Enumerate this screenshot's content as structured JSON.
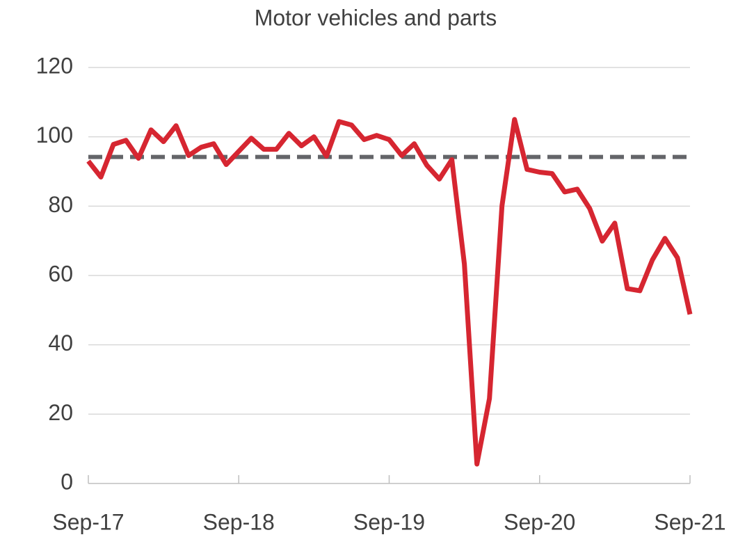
{
  "chart_data": {
    "type": "line",
    "title": "Motor vehicles and parts",
    "categories": [
      "Sep-17",
      null,
      null,
      null,
      null,
      null,
      null,
      null,
      null,
      null,
      null,
      null,
      "Sep-18",
      null,
      null,
      null,
      null,
      null,
      null,
      null,
      null,
      null,
      null,
      null,
      "Sep-19",
      null,
      null,
      null,
      null,
      null,
      null,
      null,
      null,
      null,
      null,
      null,
      "Sep-20",
      null,
      null,
      null,
      null,
      null,
      null,
      null,
      null,
      null,
      null,
      null,
      "Sep-21"
    ],
    "series": [
      {
        "color": "#d62631",
        "values": [
          93,
          88.4,
          97.8,
          99,
          93.8,
          102,
          98.6,
          103.2,
          94.6,
          97,
          98,
          92,
          95.8,
          99.6,
          96.4,
          96.4,
          101,
          97.4,
          100,
          94.4,
          104.4,
          103.4,
          99.2,
          100.4,
          99.2,
          94.6,
          98,
          91.8,
          87.8,
          93.4,
          63.3,
          5.6,
          24.5,
          80.1,
          105,
          90.6,
          89.8,
          89.4,
          84.1,
          84.9,
          79.3,
          69.9,
          75.1,
          56.2,
          55.6,
          64.5,
          70.7,
          65.1,
          48.8
        ]
      }
    ],
    "reference_line": {
      "value": 94.2,
      "color": "#646569",
      "style": "dashed"
    },
    "ylim": [
      0,
      120
    ],
    "yticks": [
      0,
      20,
      40,
      60,
      80,
      100,
      120
    ],
    "grid": true
  }
}
